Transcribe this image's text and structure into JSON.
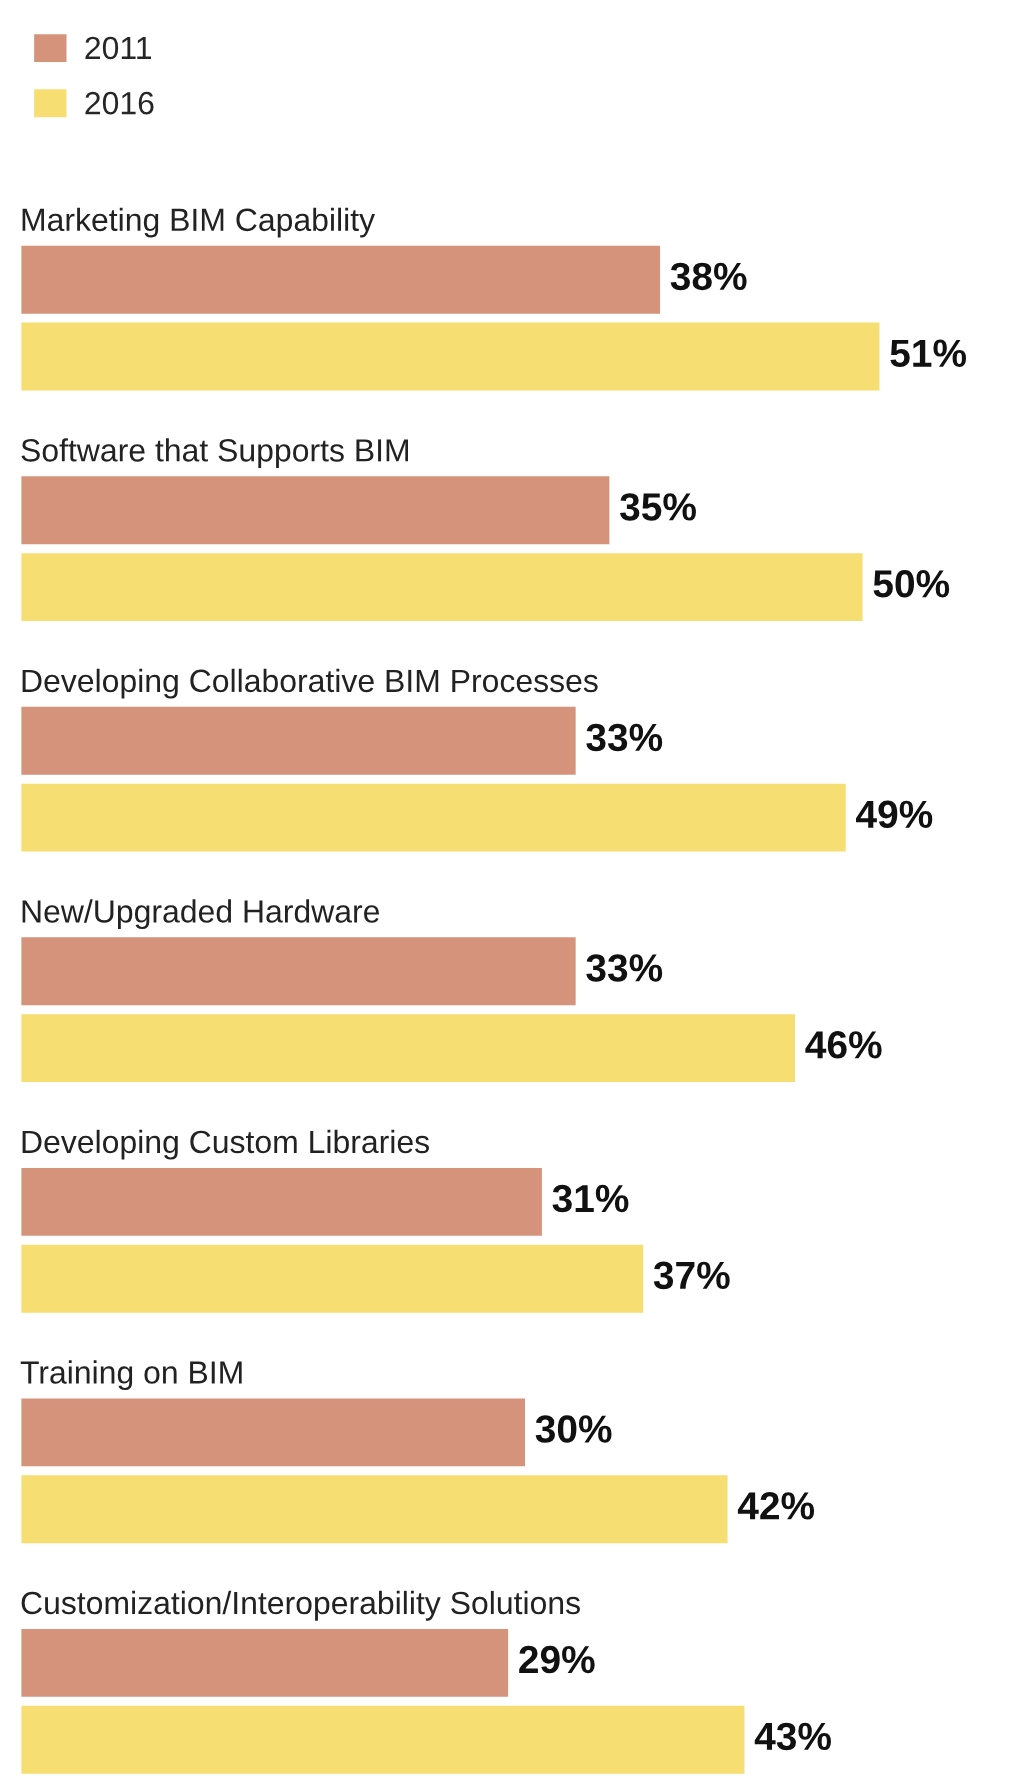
{
  "chart_data": {
    "type": "bar",
    "orientation": "horizontal",
    "legend": "top left",
    "categories": [
      "Marketing BIM Capability",
      "Software that Supports BIM",
      "Developing Collaborative BIM Processes",
      "New/Upgraded Hardware",
      "Developing Custom Libraries",
      "Training on BIM",
      "Customization/Interoperability Solutions"
    ],
    "series": [
      {
        "name": "2011",
        "color": "#d4937a",
        "values": [
          38,
          35,
          33,
          33,
          31,
          30,
          29
        ],
        "value_labels": [
          "38%",
          "35%",
          "33%",
          "33%",
          "31%",
          "30%",
          "29%"
        ]
      },
      {
        "name": "2016",
        "color": "#f6de72",
        "values": [
          51,
          50,
          49,
          46,
          37,
          42,
          43
        ],
        "value_labels": [
          "51%",
          "50%",
          "49%",
          "46%",
          "37%",
          "42%",
          "43%"
        ]
      }
    ]
  }
}
